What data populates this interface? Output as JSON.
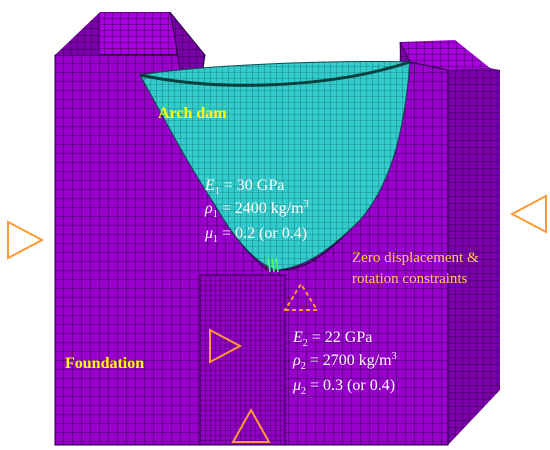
{
  "labels": {
    "arch_dam": "Arch dam",
    "foundation": "Foundation",
    "constraints_line1": "Zero displacement &",
    "constraints_line2": "rotation constraints"
  },
  "dam_props": {
    "E_var": "E",
    "E_sub": "1",
    "E_val": " = 30 GPa",
    "rho_var": "ρ",
    "rho_sub": "1",
    "rho_val": " = 2400 kg/m",
    "rho_sup": "3",
    "mu_var": "μ",
    "mu_sub": "1",
    "mu_val": " = 0.2 (or 0.4)"
  },
  "foundation_props": {
    "E_var": "E",
    "E_sub": "2",
    "E_val": " = 22 GPa",
    "rho_var": "ρ",
    "rho_sub": "2",
    "rho_val": " = 2700 kg/m",
    "rho_sup": "3",
    "mu_var": "μ",
    "mu_sub": "2",
    "mu_val": " = 0.3 (or 0.4)"
  },
  "colors": {
    "foundation_front": "#9900cc",
    "foundation_side": "#7a00a8",
    "foundation_top": "#a800dd",
    "mesh_line": "#1a0030",
    "dam_fill": "#33cccc",
    "dam_mesh": "#0a5050",
    "label_yellow": "#ffff00",
    "label_white": "#ffffff",
    "label_orange": "#ffcc66",
    "triangle_stroke": "#ff9933"
  }
}
